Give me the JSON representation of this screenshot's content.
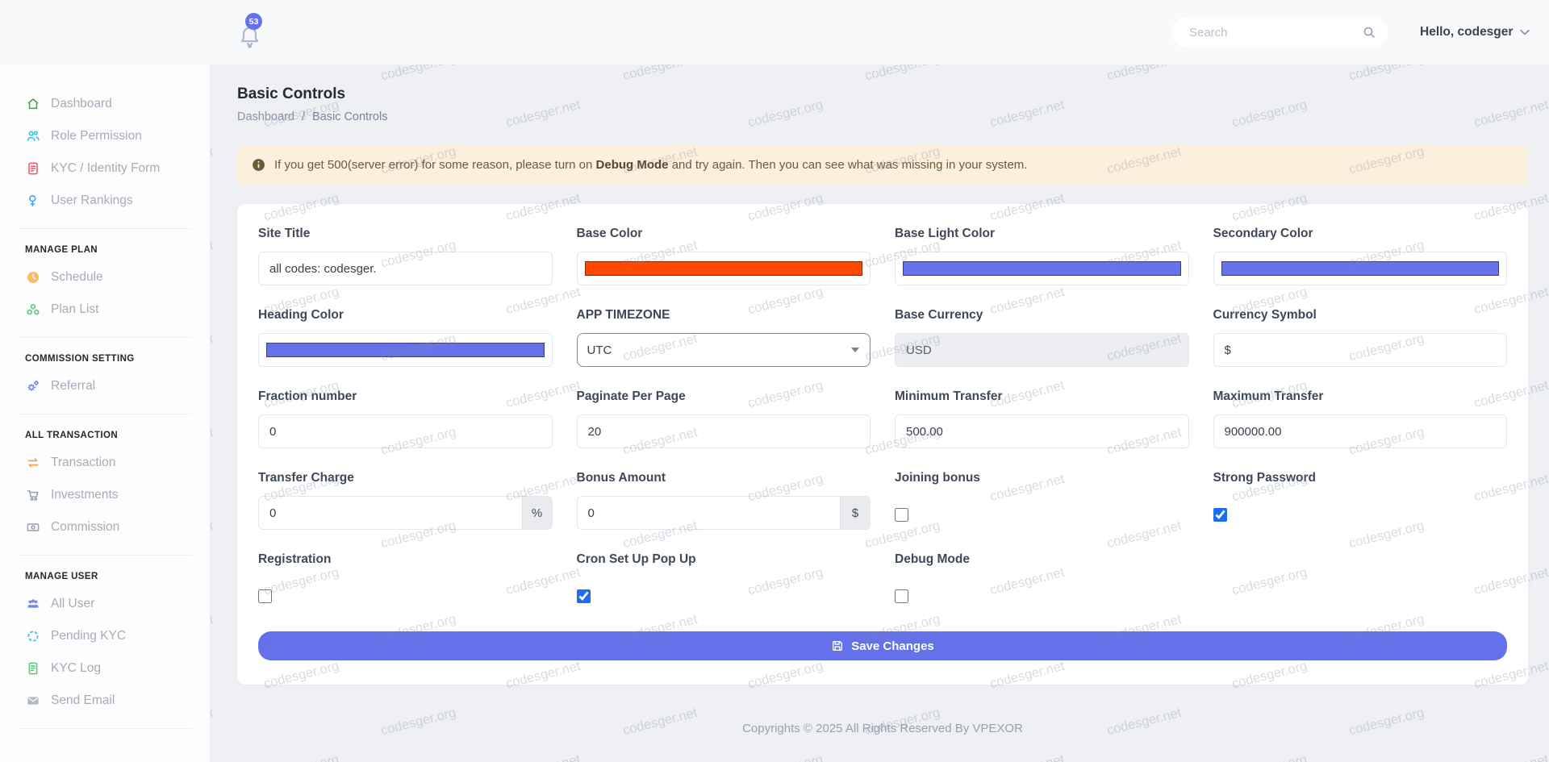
{
  "colors": {
    "accent": "#6571e8",
    "checkbox_checked": "#1b6ef3"
  },
  "header": {
    "notification_count": "53",
    "search_placeholder": "Search",
    "greeting": "Hello, codesger"
  },
  "sidebar": {
    "groups": [
      {
        "title": "",
        "items": [
          {
            "label": "Dashboard",
            "icon": "home-icon",
            "color": "#43a047"
          },
          {
            "label": "Role Permission",
            "icon": "users-icon",
            "color": "#26c6da"
          },
          {
            "label": "KYC / Identity Form",
            "icon": "id-file-icon",
            "color": "#f4516c"
          },
          {
            "label": "User Rankings",
            "icon": "ranking-icon",
            "color": "#42a5f5"
          }
        ]
      },
      {
        "title": "MANAGE PLAN",
        "items": [
          {
            "label": "Schedule",
            "icon": "clock-icon",
            "color": "#f7bc68"
          },
          {
            "label": "Plan List",
            "icon": "cubes-icon",
            "color": "#5fc27e"
          }
        ]
      },
      {
        "title": "COMMISSION SETTING",
        "items": [
          {
            "label": "Referral",
            "icon": "gears-icon",
            "color": "#7a86ea"
          }
        ]
      },
      {
        "title": "ALL TRANSACTION",
        "items": [
          {
            "label": "Transaction",
            "icon": "exchange-icon",
            "color": "#f2a654"
          },
          {
            "label": "Investments",
            "icon": "cart-icon",
            "color": "#98a0ac"
          },
          {
            "label": "Commission",
            "icon": "money-bill-icon",
            "color": "#98a0ac"
          }
        ]
      },
      {
        "title": "MANAGE USER",
        "items": [
          {
            "label": "All User",
            "icon": "users-group-icon",
            "color": "#7a86ea"
          },
          {
            "label": "Pending KYC",
            "icon": "spinner-icon",
            "color": "#4fc3f7"
          },
          {
            "label": "KYC Log",
            "icon": "file-log-icon",
            "color": "#5fc27e"
          },
          {
            "label": "Send Email",
            "icon": "envelope-icon",
            "color": "#b3bac4"
          }
        ]
      }
    ]
  },
  "page": {
    "title": "Basic Controls",
    "breadcrumb_home": "Dashboard",
    "breadcrumb_separator": "/",
    "breadcrumb_current": "Basic Controls"
  },
  "alert": {
    "prefix": "If you get 500(server error) for some reason, please turn on ",
    "bold": "Debug Mode",
    "suffix": " and try again. Then you can see what was missing in your system."
  },
  "form": {
    "site_title": {
      "label": "Site Title",
      "value": "all codes: codesger."
    },
    "base_color": {
      "label": "Base Color",
      "value": "#ff4800"
    },
    "base_light_color": {
      "label": "Base Light Color",
      "value": "#6673e8"
    },
    "secondary_color": {
      "label": "Secondary Color",
      "value": "#6673e8"
    },
    "heading_color": {
      "label": "Heading Color",
      "value": "#6673e8"
    },
    "app_timezone": {
      "label": "APP TIMEZONE",
      "value": "UTC"
    },
    "base_currency": {
      "label": "Base Currency",
      "value": "USD"
    },
    "currency_symbol": {
      "label": "Currency Symbol",
      "value": "$"
    },
    "fraction_number": {
      "label": "Fraction number",
      "value": "0"
    },
    "paginate_per_page": {
      "label": "Paginate Per Page",
      "value": "20"
    },
    "minimum_transfer": {
      "label": "Minimum Transfer",
      "value": "500.00"
    },
    "maximum_transfer": {
      "label": "Maximum Transfer",
      "value": "900000.00"
    },
    "transfer_charge": {
      "label": "Transfer Charge",
      "value": "0",
      "suffix": "%"
    },
    "bonus_amount": {
      "label": "Bonus Amount",
      "value": "0",
      "suffix": "$"
    },
    "joining_bonus": {
      "label": "Joining bonus",
      "checked": false
    },
    "strong_password": {
      "label": "Strong Password",
      "checked": true
    },
    "registration": {
      "label": "Registration",
      "checked": false
    },
    "cron_popup": {
      "label": "Cron Set Up Pop Up",
      "checked": true
    },
    "debug_mode": {
      "label": "Debug Mode",
      "checked": false
    }
  },
  "save_button": {
    "label": "Save Changes"
  },
  "footer": {
    "copyright": "Copyrights © 2025 All Rights Reserved By VPEXOR"
  },
  "watermark": {
    "labels": [
      "codesger.net",
      "codesger.org"
    ]
  }
}
